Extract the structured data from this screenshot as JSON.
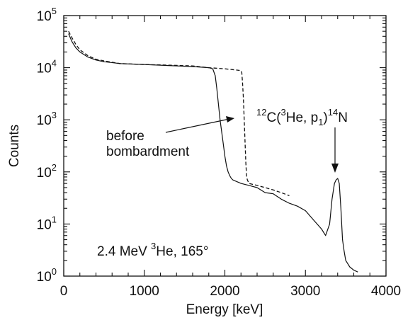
{
  "chart_data": {
    "type": "line",
    "xlabel": "Energy [keV]",
    "ylabel": "Counts",
    "xlim": [
      0,
      4000
    ],
    "ylim_log10": [
      0,
      5
    ],
    "y_scale": "log",
    "grid": false,
    "x_ticks": [
      {
        "value": 0,
        "label": "0"
      },
      {
        "value": 1000,
        "label": "1000"
      },
      {
        "value": 2000,
        "label": "2000"
      },
      {
        "value": 3000,
        "label": "3000"
      },
      {
        "value": 4000,
        "label": "4000"
      }
    ],
    "y_ticks": [
      {
        "value": 1,
        "base": "10",
        "exp": "0"
      },
      {
        "value": 10,
        "base": "10",
        "exp": "1"
      },
      {
        "value": 100,
        "base": "10",
        "exp": "2"
      },
      {
        "value": 1000,
        "base": "10",
        "exp": "3"
      },
      {
        "value": 10000,
        "base": "10",
        "exp": "4"
      },
      {
        "value": 100000,
        "base": "10",
        "exp": "5"
      }
    ],
    "series": [
      {
        "style": "solid",
        "x": [
          60,
          100,
          150,
          200,
          300,
          400,
          500,
          700,
          1000,
          1300,
          1600,
          1800,
          1850,
          1880,
          1900,
          1920,
          1940,
          1960,
          1980,
          2000,
          2020,
          2040,
          2060,
          2080,
          2100,
          2200,
          2300,
          2400,
          2500,
          2600,
          2700,
          2800,
          2900,
          3000,
          3100,
          3200,
          3250,
          3300,
          3330,
          3360,
          3380,
          3400,
          3420,
          3440,
          3460,
          3480,
          3500,
          3550,
          3600,
          3650
        ],
        "y": [
          45000,
          32000,
          24000,
          20000,
          16000,
          14000,
          13000,
          12000,
          11500,
          11000,
          10500,
          10000,
          9500,
          7000,
          4000,
          2000,
          1000,
          600,
          350,
          200,
          130,
          100,
          85,
          75,
          70,
          60,
          55,
          50,
          40,
          38,
          30,
          25,
          22,
          18,
          12,
          8,
          6,
          10,
          30,
          60,
          70,
          75,
          60,
          20,
          5,
          3,
          2,
          1.5,
          1.3,
          1.2
        ]
      },
      {
        "style": "dashed",
        "x": [
          60,
          100,
          150,
          200,
          300,
          400,
          500,
          700,
          1000,
          1300,
          1600,
          1800,
          2000,
          2150,
          2200,
          2210,
          2220,
          2230,
          2240,
          2250,
          2260,
          2270,
          2280,
          2300,
          2400,
          2500,
          2600,
          2700,
          2800
        ],
        "y": [
          50000,
          38000,
          28000,
          22000,
          17000,
          14500,
          13500,
          12000,
          11500,
          11200,
          10800,
          10000,
          9500,
          9000,
          8800,
          8000,
          5000,
          2500,
          1000,
          400,
          150,
          80,
          70,
          60,
          55,
          50,
          45,
          40,
          35
        ]
      }
    ],
    "annotations": {
      "before_line1": "before",
      "before_line2": "bombardment",
      "beam_pre": "2.4 MeV ",
      "beam_sup": "3",
      "beam_post": "He, 165°",
      "reaction_sup1": "12",
      "reaction_c": "C(",
      "reaction_sup2": "3",
      "reaction_he": "He, p",
      "reaction_sub": "1",
      "reaction_close": ")",
      "reaction_sup3": "14",
      "reaction_n": "N"
    }
  }
}
